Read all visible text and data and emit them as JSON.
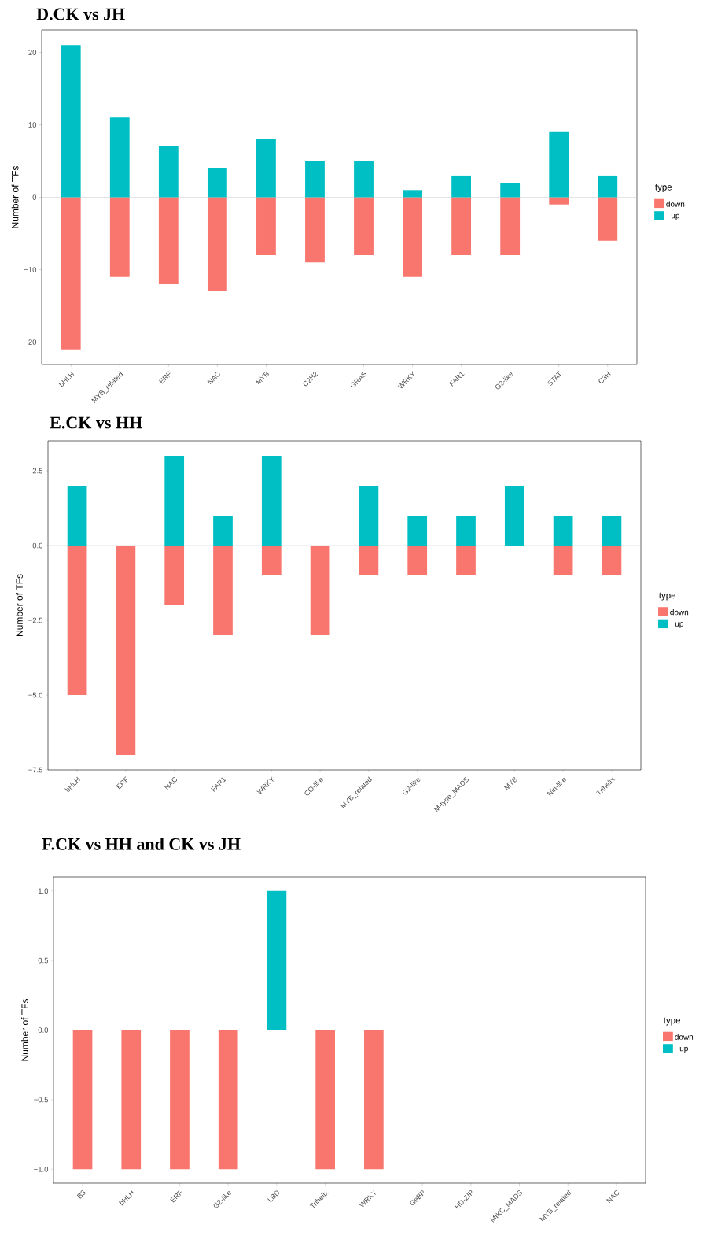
{
  "chart_data": [
    {
      "type": "bar",
      "title": "D.CK vs JH",
      "ylabel": "Number of TFs",
      "legend_title": "type",
      "legend": "right",
      "stacked": true,
      "categories": [
        "bHLH",
        "MYB_related",
        "ERF",
        "NAC",
        "MYB",
        "C2H2",
        "GRAS",
        "WRKY",
        "FAR1",
        "G2-like",
        "STAT",
        "C3H"
      ],
      "series": [
        {
          "name": "down",
          "color": "#F8766D",
          "values": [
            -21,
            -11,
            -12,
            -13,
            -8,
            -9,
            -8,
            -11,
            -8,
            -8,
            -1,
            -6
          ]
        },
        {
          "name": "up",
          "color": "#00BFC4",
          "values": [
            21,
            11,
            7,
            4,
            8,
            5,
            5,
            1,
            3,
            2,
            9,
            3
          ]
        }
      ],
      "ylim": [
        -23.1,
        23.1
      ],
      "yticks": [
        {
          "value": -20,
          "label": "−20"
        },
        {
          "value": -10,
          "label": "−10"
        },
        {
          "value": 0,
          "label": "0"
        },
        {
          "value": 10,
          "label": "10"
        },
        {
          "value": 20,
          "label": "20"
        }
      ],
      "ref_lines": [
        {
          "axis": "y",
          "value": 0,
          "color": "#C8C8C8"
        }
      ]
    },
    {
      "type": "bar",
      "title": "E.CK vs HH",
      "ylabel": "Number of TFs",
      "legend_title": "type",
      "legend": "right",
      "stacked": true,
      "categories": [
        "bHLH",
        "ERF",
        "NAC",
        "FAR1",
        "WRKY",
        "CO-like",
        "MYB_related",
        "G2-like",
        "M-type_MADS",
        "MYB",
        "Nin-like",
        "Trihelix"
      ],
      "series": [
        {
          "name": "down",
          "color": "#F8766D",
          "values": [
            -5,
            -7,
            -2,
            -3,
            -1,
            -3,
            -1,
            -1,
            -1,
            null,
            -1,
            -1
          ]
        },
        {
          "name": "up",
          "color": "#00BFC4",
          "values": [
            2,
            null,
            3,
            1,
            3,
            null,
            2,
            1,
            1,
            2,
            1,
            1
          ]
        }
      ],
      "ylim": [
        -7.5,
        3.5
      ],
      "yticks": [
        {
          "value": -7.5,
          "label": "−7.5"
        },
        {
          "value": -5,
          "label": "−5.0"
        },
        {
          "value": -2.5,
          "label": "−2.5"
        },
        {
          "value": 0,
          "label": "0.0"
        },
        {
          "value": 2.5,
          "label": "2.5"
        }
      ],
      "ref_lines": [
        {
          "axis": "y",
          "value": 0,
          "color": "#C8C8C8"
        }
      ]
    },
    {
      "type": "bar",
      "title": "F.CK vs HH and CK vs JH",
      "ylabel": "Number of TFs",
      "legend_title": "type",
      "legend": "right",
      "stacked": true,
      "categories": [
        "B3",
        "bHLH",
        "ERF",
        "G2-like",
        "LBD",
        "Trihelix",
        "WRKY",
        "GeBP",
        "HD-ZIP",
        "MIKC_MADS",
        "MYB_related",
        "NAC"
      ],
      "series": [
        {
          "name": "down",
          "color": "#F8766D",
          "values": [
            -1,
            -1,
            -1,
            -1,
            null,
            -1,
            -1,
            null,
            null,
            null,
            null,
            null
          ]
        },
        {
          "name": "up",
          "color": "#00BFC4",
          "values": [
            null,
            null,
            null,
            null,
            1,
            null,
            null,
            null,
            null,
            null,
            null,
            null
          ]
        }
      ],
      "ylim": [
        -1.1,
        1.1
      ],
      "yticks": [
        {
          "value": -1,
          "label": "−1.0"
        },
        {
          "value": -0.5,
          "label": "−0.5"
        },
        {
          "value": 0,
          "label": "0.0"
        },
        {
          "value": 0.5,
          "label": "0.5"
        },
        {
          "value": 1,
          "label": "1.0"
        }
      ],
      "ref_lines": [
        {
          "axis": "y",
          "value": 0,
          "color": "#C8C8C8"
        }
      ]
    }
  ]
}
